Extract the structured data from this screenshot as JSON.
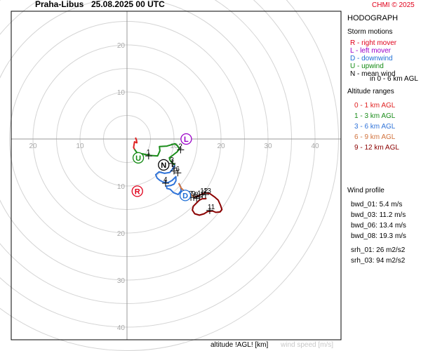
{
  "header": {
    "station": "Praha-Libus",
    "datetime": "25.08.2025 00 UTC",
    "copyright": "CHMI © 2025"
  },
  "legend": {
    "title": "HODOGRAPH",
    "storm_title": "Storm motions",
    "storm_items": [
      {
        "text": "R - right mover",
        "color": "#e0001b"
      },
      {
        "text": "L - left mover",
        "color": "#9a00c8"
      },
      {
        "text": "D - downwind",
        "color": "#1f6fd6"
      },
      {
        "text": "U - upwind",
        "color": "#138a13"
      },
      {
        "text": "N - mean wind",
        "color": "#000000"
      },
      {
        "text": "in 0 - 6 km AGL",
        "color": "#000000"
      }
    ],
    "alt_title": "Altitude ranges",
    "alt_items": [
      {
        "text": "0 - 1 km AGL",
        "color": "#e02020"
      },
      {
        "text": "1 - 3 km AGL",
        "color": "#1a8c1a"
      },
      {
        "text": "3 - 6 km AGL",
        "color": "#2f73d9"
      },
      {
        "text": "6 - 9 km AGL",
        "color": "#d2733d"
      },
      {
        "text": "9 - 12 km AGL",
        "color": "#8b0000"
      }
    ],
    "profile_title": "Wind profile",
    "profile_items": [
      "bwd_01: 5.4 m/s",
      "bwd_03: 11.2 m/s",
      "bwd_06: 13.4 m/s",
      "bwd_08: 19.3 m/s"
    ],
    "srh_items": [
      "srh_01: 26 m2/s2",
      "srh_03: 94 m2/s2"
    ]
  },
  "footer": {
    "altitude_label": "altitude !AGL! [km]",
    "speed_label": "wind speed [m/s]"
  },
  "chart_data": {
    "type": "hodograph",
    "units": "m/s",
    "ring_step": 5,
    "max_ring": 45,
    "x_tick_labels": [
      "20",
      "10",
      "10",
      "20",
      "30",
      "40"
    ],
    "x_tick_values": [
      -20,
      -10,
      10,
      20,
      30,
      40
    ],
    "y_tick_labels": [
      "20",
      "10",
      "10",
      "20",
      "30",
      "40"
    ],
    "y_tick_values": [
      20,
      10,
      -10,
      -20,
      -30,
      -40
    ],
    "segments": [
      {
        "range": "0 - 1 km AGL",
        "color": "#e02020",
        "points": [
          [
            1.8,
            0.3
          ],
          [
            2.0,
            -0.2
          ],
          [
            2.1,
            -0.8
          ],
          [
            1.6,
            -0.6
          ],
          [
            1.4,
            -1.8
          ],
          [
            1.6,
            -2.2
          ]
        ]
      },
      {
        "range": "1 - 3 km AGL",
        "color": "#1a8c1a",
        "points": [
          [
            1.6,
            -2.2
          ],
          [
            2.2,
            -3.0
          ],
          [
            3.5,
            -3.2
          ],
          [
            4.7,
            -3.5
          ],
          [
            6.5,
            -3.6
          ],
          [
            7.0,
            -2.5
          ],
          [
            6.9,
            -1.6
          ],
          [
            8.5,
            -1.5
          ],
          [
            10.2,
            -1.0
          ],
          [
            10.8,
            -1.5
          ],
          [
            11.1,
            -2.1
          ],
          [
            10.7,
            -2.7
          ],
          [
            9.7,
            -3.5
          ],
          [
            9.0,
            -4.0
          ],
          [
            9.2,
            -4.6
          ],
          [
            9.8,
            -5.2
          ],
          [
            10.2,
            -5.6
          ]
        ]
      },
      {
        "range": "3 - 6 km AGL",
        "color": "#2f73d9",
        "points": [
          [
            10.2,
            -5.6
          ],
          [
            9.6,
            -6.5
          ],
          [
            9.1,
            -7.1
          ],
          [
            8.0,
            -7.3
          ],
          [
            6.8,
            -7.0
          ],
          [
            6.1,
            -7.6
          ],
          [
            6.4,
            -8.3
          ],
          [
            7.0,
            -8.8
          ],
          [
            7.8,
            -9.2
          ],
          [
            8.7,
            -9.3
          ],
          [
            9.6,
            -8.8
          ],
          [
            10.4,
            -8.0
          ],
          [
            10.4,
            -8.9
          ],
          [
            10.0,
            -9.6
          ],
          [
            9.3,
            -9.9
          ],
          [
            8.4,
            -10.0
          ],
          [
            8.5,
            -10.5
          ],
          [
            9.2,
            -10.7
          ],
          [
            9.9,
            -11.4
          ],
          [
            10.9,
            -11.8
          ],
          [
            11.5,
            -11.0
          ],
          [
            11.4,
            -10.1
          ],
          [
            11.0,
            -9.4
          ]
        ]
      },
      {
        "range": "6 - 9 km AGL",
        "color": "#d2733d",
        "points": [
          [
            11.0,
            -9.4
          ],
          [
            11.5,
            -10.4
          ],
          [
            12.2,
            -11.1
          ],
          [
            13.1,
            -11.4
          ],
          [
            13.9,
            -12.0
          ],
          [
            14.3,
            -12.4
          ]
        ]
      },
      {
        "range": "9 - 12 km AGL",
        "color": "#8b0000",
        "points": [
          [
            14.3,
            -12.4
          ],
          [
            15.4,
            -12.0
          ],
          [
            16.5,
            -11.4
          ],
          [
            17.6,
            -11.6
          ],
          [
            18.6,
            -12.3
          ],
          [
            19.4,
            -13.0
          ],
          [
            19.9,
            -14.1
          ],
          [
            20.2,
            -15.0
          ],
          [
            19.8,
            -15.5
          ],
          [
            18.9,
            -15.6
          ],
          [
            18.2,
            -15.3
          ],
          [
            17.2,
            -15.4
          ],
          [
            16.4,
            -15.9
          ],
          [
            15.4,
            -16.2
          ],
          [
            14.4,
            -15.9
          ],
          [
            13.9,
            -15.1
          ],
          [
            14.1,
            -14.3
          ],
          [
            14.8,
            -13.6
          ],
          [
            15.4,
            -13.0
          ],
          [
            16.0,
            -12.7
          ],
          [
            16.7,
            -12.7
          ],
          [
            16.9,
            -12.6
          ]
        ]
      }
    ],
    "altitude_marks": [
      {
        "label": "1",
        "x": 4.6,
        "y": -3.6
      },
      {
        "label": "2",
        "x": 11.4,
        "y": -2.3
      },
      {
        "label": "3",
        "x": 9.6,
        "y": -5.2
      },
      {
        "label": "4",
        "x": 8.2,
        "y": -9.4
      },
      {
        "label": "5",
        "x": 10.0,
        "y": -6.8
      },
      {
        "label": "6",
        "x": 10.8,
        "y": -7.2
      },
      {
        "label": "7",
        "x": 13.6,
        "y": -12.4
      },
      {
        "label": "8",
        "x": 14.8,
        "y": -12.6
      },
      {
        "label": "9",
        "x": 14.2,
        "y": -12.4
      },
      {
        "label": "10",
        "x": 15.4,
        "y": -12.3
      },
      {
        "label": "11",
        "x": 17.6,
        "y": -15.2
      },
      {
        "label": "12",
        "x": 16.0,
        "y": -11.8
      },
      {
        "label": "13",
        "x": 16.7,
        "y": -11.8
      }
    ],
    "storm_motions": [
      {
        "label": "R",
        "x": 2.2,
        "y": -11.1,
        "color": "#e0001b"
      },
      {
        "label": "L",
        "x": 12.6,
        "y": 0.0,
        "color": "#9a00c8"
      },
      {
        "label": "D",
        "x": 12.4,
        "y": -12.0,
        "color": "#1f6fd6"
      },
      {
        "label": "U",
        "x": 2.4,
        "y": -4.0,
        "color": "#138a13"
      },
      {
        "label": "N",
        "x": 7.8,
        "y": -5.5,
        "color": "#000000"
      }
    ]
  }
}
